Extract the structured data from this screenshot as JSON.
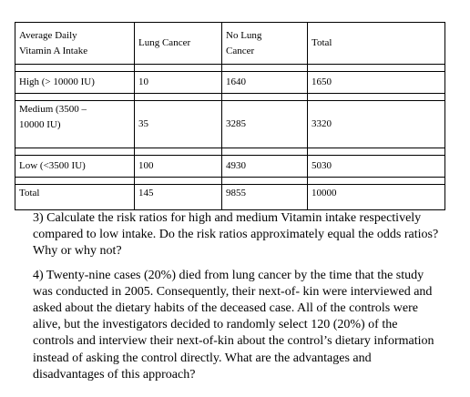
{
  "table": {
    "headers": [
      "Average Daily\nVitamin A Intake",
      "Lung Cancer",
      "No Lung\nCancer",
      "Total"
    ],
    "rows": [
      [
        "High (> 10000 IU)",
        "10",
        "1640",
        "1650"
      ],
      [
        "Medium (3500 –\n10000 IU)",
        "35",
        "3285",
        "3320"
      ],
      [
        "Low (<3500 IU)",
        "100",
        "4930",
        "5030"
      ],
      [
        "Total",
        "145",
        "9855",
        "10000"
      ]
    ]
  },
  "questions": [
    "3) Calculate the risk ratios for high and medium Vitamin intake respectively compared to low intake. Do the risk ratios approximately equal the odds ratios? Why or why not?",
    "4) Twenty-nine cases (20%) died from lung cancer by the time that the study was conducted in 2005. Consequently, their next-of- kin were interviewed and asked about the dietary habits of the deceased case. All of the controls were alive, but the investigators decided to randomly select 120 (20%) of the controls and interview their next-of-kin about the control’s dietary information instead of asking the control directly. What are the advantages and disadvantages of this approach?"
  ]
}
